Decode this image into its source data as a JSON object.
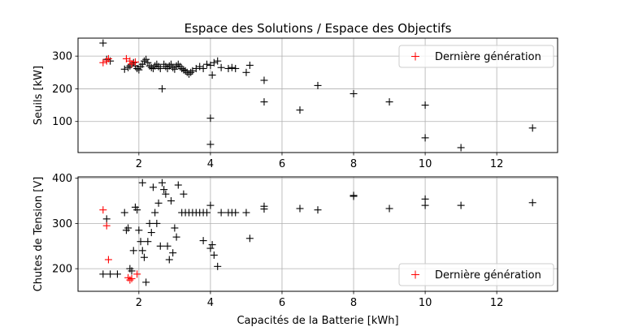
{
  "chart_data": [
    {
      "type": "scatter",
      "title": "Espace des Solutions / Espace des Objectifs",
      "xlabel": "",
      "ylabel": "Seuils [kW]",
      "xlim": [
        0.3,
        13.7
      ],
      "ylim": [
        5,
        355
      ],
      "xticks": [
        2,
        4,
        6,
        8,
        10,
        12
      ],
      "yticks": [
        100,
        200,
        300
      ],
      "grid": true,
      "legend_position": "top-right",
      "series": [
        {
          "name": "",
          "color": "#000000",
          "marker": "plus",
          "points": [
            [
              1.0,
              340
            ],
            [
              1.1,
              290
            ],
            [
              1.2,
              285
            ],
            [
              1.6,
              260
            ],
            [
              1.7,
              265
            ],
            [
              1.75,
              270
            ],
            [
              1.8,
              275
            ],
            [
              1.85,
              280
            ],
            [
              1.9,
              270
            ],
            [
              1.95,
              262
            ],
            [
              2.0,
              258
            ],
            [
              2.05,
              268
            ],
            [
              2.1,
              275
            ],
            [
              2.15,
              285
            ],
            [
              2.2,
              290
            ],
            [
              2.25,
              280
            ],
            [
              2.3,
              270
            ],
            [
              2.35,
              265
            ],
            [
              2.4,
              262
            ],
            [
              2.45,
              270
            ],
            [
              2.5,
              275
            ],
            [
              2.55,
              268
            ],
            [
              2.6,
              262
            ],
            [
              2.65,
              200
            ],
            [
              2.7,
              275
            ],
            [
              2.75,
              268
            ],
            [
              2.8,
              262
            ],
            [
              2.85,
              270
            ],
            [
              2.9,
              275
            ],
            [
              2.95,
              265
            ],
            [
              3.0,
              260
            ],
            [
              3.05,
              270
            ],
            [
              3.1,
              275
            ],
            [
              3.15,
              268
            ],
            [
              3.2,
              262
            ],
            [
              3.25,
              258
            ],
            [
              3.3,
              255
            ],
            [
              3.35,
              250
            ],
            [
              3.4,
              245
            ],
            [
              3.45,
              250
            ],
            [
              3.5,
              255
            ],
            [
              3.6,
              262
            ],
            [
              3.7,
              268
            ],
            [
              3.8,
              262
            ],
            [
              3.9,
              275
            ],
            [
              4.0,
              272
            ],
            [
              4.05,
              242
            ],
            [
              4.1,
              280
            ],
            [
              4.2,
              285
            ],
            [
              4.3,
              265
            ],
            [
              4.5,
              262
            ],
            [
              4.6,
              265
            ],
            [
              4.7,
              262
            ],
            [
              5.0,
              250
            ],
            [
              5.1,
              272
            ],
            [
              5.5,
              226
            ],
            [
              5.5,
              160
            ],
            [
              6.5,
              135
            ],
            [
              7.0,
              210
            ],
            [
              8.0,
              185
            ],
            [
              9.0,
              160
            ],
            [
              10.0,
              150
            ],
            [
              10.0,
              50
            ],
            [
              11.0,
              20
            ],
            [
              13.0,
              80
            ],
            [
              4.0,
              110
            ],
            [
              4.0,
              30
            ]
          ]
        },
        {
          "name": "Dernière génération",
          "color": "#ff0000",
          "marker": "plus",
          "points": [
            [
              1.0,
              280
            ],
            [
              1.1,
              285
            ],
            [
              1.15,
              292
            ],
            [
              1.65,
              292
            ],
            [
              1.75,
              285
            ],
            [
              1.8,
              276
            ],
            [
              1.9,
              282
            ]
          ]
        }
      ]
    },
    {
      "type": "scatter",
      "title": "",
      "xlabel": "Capacités de la Batterie [kWh]",
      "ylabel": "Chutes de Tension [V]",
      "xlim": [
        0.3,
        13.7
      ],
      "ylim": [
        150,
        403
      ],
      "xticks": [
        2,
        4,
        6,
        8,
        10,
        12
      ],
      "yticks": [
        200,
        300,
        400
      ],
      "grid": true,
      "legend_position": "lower-right",
      "series": [
        {
          "name": "",
          "color": "#000000",
          "marker": "plus",
          "points": [
            [
              1.0,
              188
            ],
            [
              1.1,
              310
            ],
            [
              1.2,
              188
            ],
            [
              1.4,
              188
            ],
            [
              1.6,
              324
            ],
            [
              1.65,
              285
            ],
            [
              1.7,
              290
            ],
            [
              1.75,
              200
            ],
            [
              1.8,
              195
            ],
            [
              1.85,
              240
            ],
            [
              1.9,
              336
            ],
            [
              1.95,
              330
            ],
            [
              2.0,
              285
            ],
            [
              2.05,
              260
            ],
            [
              2.1,
              240
            ],
            [
              2.15,
              225
            ],
            [
              2.1,
              390
            ],
            [
              2.2,
              170
            ],
            [
              2.25,
              260
            ],
            [
              2.3,
              300
            ],
            [
              2.35,
              280
            ],
            [
              2.4,
              380
            ],
            [
              2.45,
              324
            ],
            [
              2.5,
              300
            ],
            [
              2.55,
              345
            ],
            [
              2.6,
              250
            ],
            [
              2.65,
              390
            ],
            [
              2.7,
              375
            ],
            [
              2.75,
              365
            ],
            [
              2.8,
              250
            ],
            [
              2.85,
              220
            ],
            [
              2.9,
              350
            ],
            [
              2.95,
              235
            ],
            [
              3.0,
              290
            ],
            [
              3.05,
              270
            ],
            [
              3.1,
              385
            ],
            [
              3.2,
              324
            ],
            [
              3.25,
              365
            ],
            [
              3.3,
              324
            ],
            [
              3.4,
              324
            ],
            [
              3.5,
              324
            ],
            [
              3.6,
              324
            ],
            [
              3.7,
              324
            ],
            [
              3.8,
              324
            ],
            [
              3.9,
              324
            ],
            [
              4.0,
              340
            ],
            [
              4.05,
              253
            ],
            [
              4.1,
              230
            ],
            [
              4.2,
              205
            ],
            [
              4.3,
              324
            ],
            [
              4.5,
              324
            ],
            [
              4.6,
              324
            ],
            [
              4.7,
              324
            ],
            [
              5.0,
              324
            ],
            [
              5.1,
              267
            ],
            [
              5.5,
              338
            ],
            [
              5.5,
              332
            ],
            [
              6.5,
              333
            ],
            [
              7.0,
              330
            ],
            [
              8.0,
              362
            ],
            [
              8.0,
              360
            ],
            [
              9.0,
              333
            ],
            [
              10.0,
              340
            ],
            [
              10.0,
              354
            ],
            [
              11.0,
              340
            ],
            [
              13.0,
              346
            ],
            [
              3.8,
              262
            ],
            [
              4.0,
              245
            ]
          ]
        },
        {
          "name": "Dernière génération",
          "color": "#ff0000",
          "marker": "plus",
          "points": [
            [
              1.0,
              330
            ],
            [
              1.1,
              295
            ],
            [
              1.15,
              220
            ],
            [
              1.7,
              180
            ],
            [
              1.75,
              175
            ],
            [
              1.8,
              178
            ],
            [
              1.95,
              188
            ]
          ]
        }
      ]
    }
  ]
}
